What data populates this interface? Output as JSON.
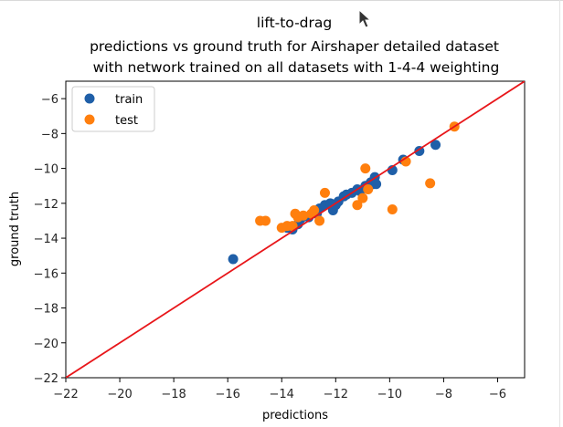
{
  "chart_data": {
    "type": "scatter",
    "title_lines": [
      "lift-to-drag",
      "predictions vs ground truth for Airshaper detailed dataset",
      "with network trained on all datasets with 1-4-4 weighting"
    ],
    "xlabel": "predictions",
    "ylabel": "ground truth",
    "xlim": [
      -22,
      -5
    ],
    "ylim": [
      -22,
      -5
    ],
    "xticks": [
      -22,
      -20,
      -18,
      -16,
      -14,
      -12,
      -10,
      -8,
      -6
    ],
    "yticks": [
      -22,
      -20,
      -18,
      -16,
      -14,
      -12,
      -10,
      -8,
      -6
    ],
    "grid": false,
    "legend_position": "top-left",
    "reference_line": {
      "from": [
        -22,
        -22
      ],
      "to": [
        -5,
        -5
      ],
      "color": "#e8161a"
    },
    "series": [
      {
        "name": "train",
        "color": "#1f5fa8",
        "points": [
          [
            -15.8,
            -15.2
          ],
          [
            -13.8,
            -13.4
          ],
          [
            -13.6,
            -13.5
          ],
          [
            -13.4,
            -13.2
          ],
          [
            -13.3,
            -12.9
          ],
          [
            -13.0,
            -12.8
          ],
          [
            -12.8,
            -12.5
          ],
          [
            -12.7,
            -12.6
          ],
          [
            -12.6,
            -12.3
          ],
          [
            -12.4,
            -12.1
          ],
          [
            -12.2,
            -12.0
          ],
          [
            -12.1,
            -12.4
          ],
          [
            -12.0,
            -12.1
          ],
          [
            -11.9,
            -11.9
          ],
          [
            -11.7,
            -11.6
          ],
          [
            -11.6,
            -11.5
          ],
          [
            -11.4,
            -11.4
          ],
          [
            -11.2,
            -11.2
          ],
          [
            -11.1,
            -11.3
          ],
          [
            -10.9,
            -11.0
          ],
          [
            -10.7,
            -10.8
          ],
          [
            -10.6,
            -10.9
          ],
          [
            -10.55,
            -10.5
          ],
          [
            -10.5,
            -10.9
          ],
          [
            -9.9,
            -10.1
          ],
          [
            -9.5,
            -9.5
          ],
          [
            -8.9,
            -9.0
          ],
          [
            -8.3,
            -8.65
          ]
        ]
      },
      {
        "name": "test",
        "color": "#ff7f0e",
        "points": [
          [
            -14.8,
            -13.0
          ],
          [
            -14.6,
            -13.0
          ],
          [
            -14.0,
            -13.4
          ],
          [
            -13.8,
            -13.3
          ],
          [
            -13.6,
            -13.3
          ],
          [
            -13.5,
            -12.6
          ],
          [
            -13.4,
            -12.8
          ],
          [
            -13.2,
            -12.7
          ],
          [
            -12.9,
            -12.6
          ],
          [
            -12.8,
            -12.4
          ],
          [
            -12.6,
            -13.0
          ],
          [
            -12.4,
            -11.4
          ],
          [
            -11.2,
            -12.1
          ],
          [
            -11.0,
            -11.7
          ],
          [
            -10.9,
            -10.0
          ],
          [
            -10.8,
            -11.2
          ],
          [
            -9.9,
            -12.35
          ],
          [
            -9.4,
            -9.6
          ],
          [
            -8.5,
            -10.85
          ],
          [
            -7.6,
            -7.6
          ]
        ]
      }
    ]
  }
}
